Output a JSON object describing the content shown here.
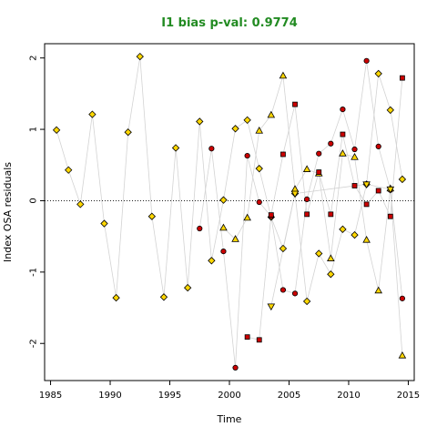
{
  "chart_data": {
    "type": "scatter",
    "title": "I1 bias p-val: 0.9774",
    "title_color": "#228B22",
    "xlabel": "Time",
    "ylabel": "Index OSA residuals",
    "xlim": [
      1984.5,
      2015.5
    ],
    "ylim": [
      -2.52,
      2.2
    ],
    "xticks": [
      1985,
      1990,
      1995,
      2000,
      2005,
      2010,
      2015
    ],
    "yticks": [
      -2,
      -1,
      0,
      1,
      2
    ],
    "reference_line": {
      "y": 0,
      "style": "dotted"
    },
    "grid": false,
    "legend": "none",
    "line_color": "#d3d3d3",
    "series": [
      {
        "marker": "diamond",
        "fill": "#ffd700",
        "points": [
          [
            1985.5,
            0.99
          ],
          [
            1986.5,
            0.43
          ],
          [
            1987.5,
            -0.05
          ],
          [
            1988.5,
            1.21
          ],
          [
            1989.5,
            -0.32
          ],
          [
            1990.5,
            -1.36
          ],
          [
            1991.5,
            0.96
          ],
          [
            1992.5,
            2.02
          ],
          [
            1993.5,
            -0.22
          ],
          [
            1994.5,
            -1.35
          ],
          [
            1995.5,
            0.74
          ],
          [
            1996.5,
            -1.22
          ],
          [
            1997.5,
            1.11
          ],
          [
            1998.5,
            -0.84
          ],
          [
            1999.5,
            0.01
          ],
          [
            2000.5,
            1.01
          ],
          [
            2001.5,
            1.13
          ],
          [
            2002.5,
            0.45
          ],
          [
            2003.5,
            -0.23
          ],
          [
            2004.5,
            -0.67
          ],
          [
            2005.5,
            0.1
          ],
          [
            2006.5,
            -1.41
          ],
          [
            2007.5,
            -0.74
          ],
          [
            2008.5,
            -1.03
          ],
          [
            2009.5,
            -0.4
          ],
          [
            2010.5,
            -0.48
          ],
          [
            2011.5,
            0.23
          ],
          [
            2012.5,
            1.78
          ],
          [
            2013.5,
            1.27
          ],
          [
            2014.5,
            0.3
          ]
        ]
      },
      {
        "marker": "circle",
        "fill": "#cc0000",
        "points": [
          [
            1997.5,
            -0.39
          ],
          [
            1998.5,
            0.73
          ],
          [
            1999.5,
            -0.71
          ],
          [
            2000.5,
            -2.34
          ],
          [
            2001.5,
            0.63
          ],
          [
            2002.5,
            -0.02
          ],
          [
            2003.5,
            -0.22
          ],
          [
            2004.5,
            -1.25
          ],
          [
            2005.5,
            -1.3
          ],
          [
            2006.5,
            0.02
          ],
          [
            2007.5,
            0.66
          ],
          [
            2008.5,
            0.8
          ],
          [
            2009.5,
            1.28
          ],
          [
            2010.5,
            0.72
          ],
          [
            2011.5,
            1.96
          ],
          [
            2012.5,
            0.76
          ],
          [
            2013.5,
            0.15
          ],
          [
            2014.5,
            -1.37
          ]
        ]
      },
      {
        "marker": "triangle",
        "fill": "#ffd700",
        "points": [
          [
            1999.5,
            -0.38
          ],
          [
            2000.5,
            -0.54
          ],
          [
            2001.5,
            -0.24
          ],
          [
            2002.5,
            0.98
          ],
          [
            2003.5,
            1.2
          ],
          [
            2004.5,
            1.75
          ],
          [
            2005.5,
            0.16
          ],
          [
            2006.5,
            0.44
          ],
          [
            2007.5,
            0.38
          ],
          [
            2008.5,
            -0.81
          ],
          [
            2009.5,
            0.66
          ],
          [
            2010.5,
            0.61
          ],
          [
            2011.5,
            -0.55
          ],
          [
            2012.5,
            -1.26
          ],
          [
            2013.5,
            0.17
          ],
          [
            2014.5,
            -2.17
          ]
        ]
      },
      {
        "marker": "square",
        "fill": "#cc0000",
        "points": [
          [
            2001.5,
            -1.91
          ],
          [
            2002.5,
            -1.95
          ],
          [
            2003.5,
            -0.2
          ],
          [
            2004.5,
            0.65
          ],
          [
            2005.5,
            1.35
          ],
          [
            2006.5,
            -0.19
          ],
          [
            2007.5,
            0.4
          ],
          [
            2008.5,
            -0.19
          ],
          [
            2009.5,
            0.93
          ],
          [
            2010.5,
            0.21
          ],
          [
            2011.5,
            -0.05
          ],
          [
            2012.5,
            0.14
          ],
          [
            2013.5,
            -0.22
          ],
          [
            2014.5,
            1.72
          ]
        ]
      },
      {
        "marker": "triangle-down",
        "fill": "#ffd700",
        "points": [
          [
            2003.5,
            -1.48
          ],
          [
            2005.5,
            0.1
          ],
          [
            2011.5,
            0.23
          ],
          [
            2013.5,
            0.16
          ]
        ]
      }
    ]
  }
}
